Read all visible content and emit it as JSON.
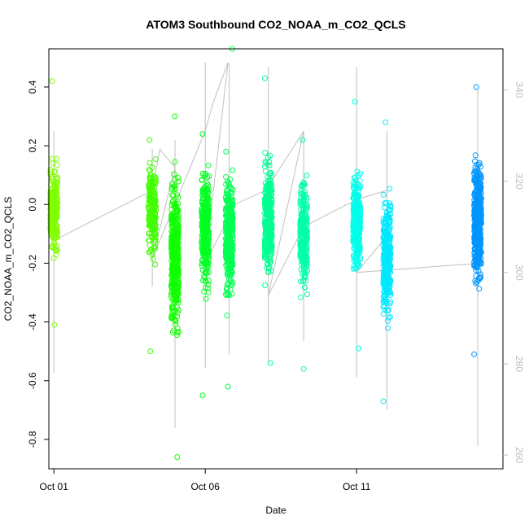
{
  "chart_data": {
    "type": "scatter",
    "title": "ATOM3 Southbound CO2_NOAA_m_CO2_QCLS",
    "xlabel": "Date",
    "ylabel": "CO2_NOAA_m_CO2_QCLS",
    "xlim": [
      "2017-09-30T20:00",
      "2017-10-15T20:00"
    ],
    "ylim": [
      -0.9,
      0.53
    ],
    "y2lim": [
      257,
      349
    ],
    "x_tick_labels": [
      {
        "date": "2017-10-01",
        "label": "Oct 01"
      },
      {
        "date": "2017-10-06",
        "label": "Oct 06"
      },
      {
        "date": "2017-10-11",
        "label": "Oct 11"
      }
    ],
    "y_ticks": [
      -0.8,
      -0.6,
      -0.4,
      -0.2,
      0.0,
      0.2,
      0.4
    ],
    "y_tick_labels": [
      "-0.8",
      "-0.6",
      "-0.4",
      "-0.2",
      "0.0",
      "0.2",
      "0.4"
    ],
    "y2_ticks": [
      260,
      280,
      300,
      320,
      340
    ],
    "y2_tick_labels": [
      "260",
      "280",
      "300",
      "320",
      "340"
    ],
    "grid": false,
    "legend": "none",
    "point_marker": "open-circle",
    "secondary_line_color": "#c0c0c0",
    "flights": [
      {
        "date": "2017-10-01T00:00",
        "color": "#80ff00",
        "y_min": -0.41,
        "y_max": 0.42,
        "y_median": -0.02,
        "y_spread": 0.09,
        "n": 260
      },
      {
        "date": "2017-10-04T06:00",
        "color": "#40ff00",
        "y_min": -0.5,
        "y_max": 0.22,
        "y_median": -0.03,
        "y_spread": 0.1,
        "n": 200
      },
      {
        "date": "2017-10-05T00:00",
        "color": "#10ff00",
        "y_min": -0.86,
        "y_max": 0.3,
        "y_median": -0.17,
        "y_spread": 0.16,
        "n": 420
      },
      {
        "date": "2017-10-06T00:00",
        "color": "#00ff20",
        "y_min": -0.65,
        "y_max": 0.24,
        "y_median": -0.08,
        "y_spread": 0.12,
        "n": 300
      },
      {
        "date": "2017-10-06T19:00",
        "color": "#00ff50",
        "y_min": -0.62,
        "y_max": 0.53,
        "y_median": -0.1,
        "y_spread": 0.13,
        "n": 340
      },
      {
        "date": "2017-10-08T02:00",
        "color": "#00ff90",
        "y_min": -0.54,
        "y_max": 0.43,
        "y_median": -0.05,
        "y_spread": 0.12,
        "n": 340
      },
      {
        "date": "2017-10-09T06:00",
        "color": "#00ffa8",
        "y_min": -0.56,
        "y_max": 0.22,
        "y_median": -0.1,
        "y_spread": 0.11,
        "n": 260
      },
      {
        "date": "2017-10-11T00:00",
        "color": "#00ffea",
        "y_min": -0.49,
        "y_max": 0.35,
        "y_median": -0.06,
        "y_spread": 0.11,
        "n": 300
      },
      {
        "date": "2017-10-12T00:00",
        "color": "#00e8ff",
        "y_min": -0.67,
        "y_max": 0.28,
        "y_median": -0.18,
        "y_spread": 0.12,
        "n": 340
      },
      {
        "date": "2017-10-15T00:00",
        "color": "#0095ff",
        "y_min": -0.51,
        "y_max": 0.4,
        "y_median": -0.05,
        "y_spread": 0.13,
        "n": 420
      }
    ],
    "secondary_series": [
      {
        "date": "2017-10-01T00:00",
        "y2_min": 278,
        "y2_max": 331
      },
      {
        "date": "2017-10-04T06:00",
        "y2_min": 297,
        "y2_max": 327
      },
      {
        "date": "2017-10-05T00:00",
        "y2_min": 266,
        "y2_max": 329
      },
      {
        "date": "2017-10-06T00:00",
        "y2_min": 279,
        "y2_max": 346
      },
      {
        "date": "2017-10-06T19:00",
        "y2_min": 282,
        "y2_max": 346
      },
      {
        "date": "2017-10-08T02:00",
        "y2_min": 280,
        "y2_max": 345
      },
      {
        "date": "2017-10-09T06:00",
        "y2_min": 285,
        "y2_max": 331
      },
      {
        "date": "2017-10-11T00:00",
        "y2_min": 277,
        "y2_max": 345
      },
      {
        "date": "2017-10-12T00:00",
        "y2_min": 270,
        "y2_max": 331
      },
      {
        "date": "2017-10-15T00:00",
        "y2_min": 262,
        "y2_max": 340
      }
    ],
    "secondary_line_points": [
      {
        "date": "2017-10-01T00:00",
        "y2": 307
      },
      {
        "date": "2017-10-04T06:00",
        "y2": 318
      },
      {
        "date": "2017-10-04T12:00",
        "y2": 327
      },
      {
        "date": "2017-10-05T00:00",
        "y2": 323
      },
      {
        "date": "2017-10-04T06:00",
        "y2": 303
      },
      {
        "date": "2017-10-06T00:00",
        "y2": 331
      },
      {
        "date": "2017-10-06T06:00",
        "y2": 337
      },
      {
        "date": "2017-10-06T18:00",
        "y2": 346
      },
      {
        "date": "2017-10-06T00:00",
        "y2": 302
      },
      {
        "date": "2017-10-07T00:00",
        "y2": 315
      },
      {
        "date": "2017-10-08T00:00",
        "y2": 318
      },
      {
        "date": "2017-10-09T06:00",
        "y2": 331
      },
      {
        "date": "2017-10-08T02:00",
        "y2": 295
      },
      {
        "date": "2017-10-09T06:00",
        "y2": 310
      },
      {
        "date": "2017-10-11T00:00",
        "y2": 316
      },
      {
        "date": "2017-10-12T00:00",
        "y2": 318
      },
      {
        "date": "2017-10-12T00:00",
        "y2": 308
      },
      {
        "date": "2017-10-11T00:00",
        "y2": 300
      },
      {
        "date": "2017-10-15T00:00",
        "y2": 302
      }
    ]
  }
}
